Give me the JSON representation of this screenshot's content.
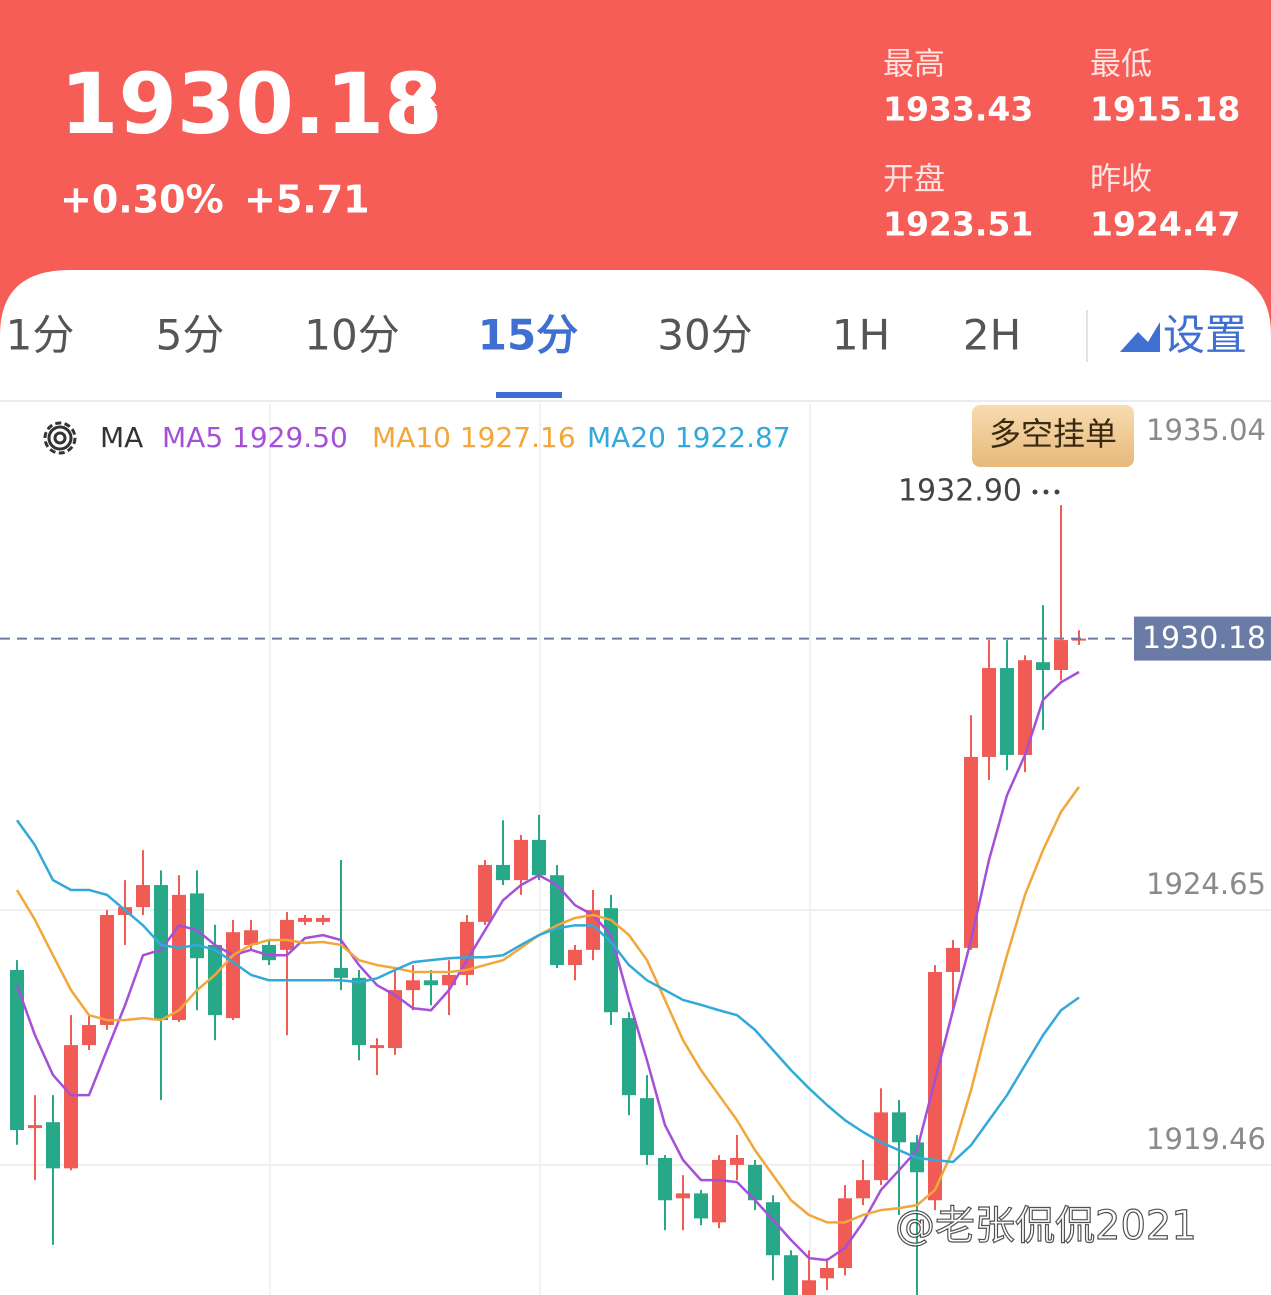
{
  "header": {
    "price": "1930.18",
    "change_percent": "+0.30%",
    "change": "+5.71",
    "stats": [
      {
        "label": "最高",
        "value": "1933.43"
      },
      {
        "label": "最低",
        "value": "1915.18"
      },
      {
        "label": "开盘",
        "value": "1923.51"
      },
      {
        "label": "昨收",
        "value": "1924.47"
      }
    ]
  },
  "tabs": {
    "items": [
      "1分",
      "5分",
      "10分",
      "15分",
      "30分",
      "1H",
      "2H"
    ],
    "active": 3,
    "settings": "设置"
  },
  "button": "多空挂单",
  "watermark": "@老张侃侃2021",
  "chart_data": {
    "type": "candlestick",
    "indicator": "MA",
    "up_color": "#f05b55",
    "down_color": "#26a889",
    "ylim": [
      1916.81,
      1935.04
    ],
    "yticks": [
      1935.04,
      1924.65,
      1919.46
    ],
    "last_price": 1930.18,
    "high_marker": {
      "value": 1932.9,
      "label": "1932.90"
    },
    "candles": {
      "open": [
        1923.43,
        1920.21,
        1920.33,
        1919.39,
        1921.9,
        1922.31,
        1924.55,
        1924.71,
        1925.16,
        1922.41,
        1924.99,
        1923.94,
        1922.45,
        1923.94,
        1923.94,
        1923.84,
        1924.41,
        1924.41,
        1923.47,
        1923.27,
        1921.84,
        1921.84,
        1923.02,
        1923.22,
        1923.12,
        1923.33,
        1924.41,
        1925.57,
        1925.26,
        1926.08,
        1925.36,
        1923.53,
        1923.84,
        1924.69,
        1922.45,
        1920.82,
        1919.6,
        1918.78,
        1918.88,
        1918.29,
        1919.46,
        1919.46,
        1918.7,
        1917.62,
        1916.81,
        1917.15,
        1917.36,
        1918.78,
        1919.15,
        1920.53,
        1919.92,
        1918.74,
        1923.39,
        1923.88,
        1927.77,
        1929.58,
        1927.81,
        1929.7,
        1929.54,
        1930.15
      ],
      "close": [
        1920.17,
        1920.27,
        1919.39,
        1921.9,
        1922.31,
        1924.55,
        1924.71,
        1925.16,
        1922.41,
        1924.96,
        1923.67,
        1922.51,
        1924.2,
        1924.24,
        1923.63,
        1924.45,
        1924.49,
        1924.49,
        1923.27,
        1921.9,
        1921.9,
        1923.02,
        1923.22,
        1923.12,
        1923.33,
        1924.41,
        1925.57,
        1925.26,
        1926.08,
        1925.36,
        1923.53,
        1923.84,
        1924.65,
        1922.57,
        1920.88,
        1919.66,
        1918.74,
        1918.88,
        1918.37,
        1919.56,
        1919.6,
        1918.74,
        1917.62,
        1916.81,
        1917.11,
        1917.36,
        1918.78,
        1919.15,
        1920.53,
        1919.92,
        1919.31,
        1923.39,
        1923.88,
        1927.77,
        1929.58,
        1927.81,
        1929.74,
        1929.54,
        1930.15,
        1930.18
      ],
      "high": [
        1923.63,
        1920.88,
        1920.88,
        1922.51,
        1922.51,
        1924.65,
        1925.26,
        1925.87,
        1925.46,
        1925.36,
        1925.46,
        1924.35,
        1924.45,
        1924.45,
        1924.04,
        1924.61,
        1924.55,
        1924.55,
        1925.67,
        1923.43,
        1922.04,
        1923.43,
        1923.53,
        1923.43,
        1923.63,
        1924.55,
        1925.67,
        1926.48,
        1926.18,
        1926.59,
        1925.57,
        1923.94,
        1925.06,
        1924.96,
        1922.57,
        1921.29,
        1919.66,
        1919.25,
        1918.95,
        1919.66,
        1920.07,
        1919.56,
        1918.84,
        1917.72,
        1917.72,
        1917.56,
        1919.05,
        1919.56,
        1921.02,
        1920.78,
        1920.07,
        1923.53,
        1924.04,
        1928.62,
        1930.15,
        1930.15,
        1929.84,
        1930.86,
        1932.9,
        1930.35
      ],
      "low": [
        1919.87,
        1919.15,
        1917.83,
        1919.35,
        1921.8,
        1922.21,
        1923.94,
        1924.55,
        1920.78,
        1922.37,
        1922.61,
        1922.0,
        1922.41,
        1923.84,
        1923.53,
        1922.1,
        1924.35,
        1924.35,
        1923.02,
        1921.59,
        1921.29,
        1921.7,
        1922.61,
        1922.71,
        1922.51,
        1923.12,
        1924.35,
        1925.16,
        1924.96,
        1925.26,
        1923.47,
        1923.22,
        1923.63,
        1922.31,
        1920.47,
        1919.46,
        1918.13,
        1918.13,
        1918.23,
        1918.17,
        1919.15,
        1918.54,
        1917.11,
        1916.81,
        1916.81,
        1916.91,
        1917.21,
        1918.64,
        1919.05,
        1918.44,
        1916.81,
        1918.54,
        1922.61,
        1923.84,
        1927.3,
        1927.5,
        1927.46,
        1928.32,
        1929.33,
        1930.05
      ]
    },
    "series": [
      {
        "name": "MA5",
        "color": "#a450d8",
        "legend_value": "1929.50",
        "values": [
          1923.12,
          1922.1,
          1921.29,
          1920.88,
          1920.88,
          1921.8,
          1922.71,
          1923.73,
          1923.84,
          1924.34,
          1924.24,
          1923.94,
          1923.73,
          1923.84,
          1923.73,
          1923.73,
          1924.08,
          1924.14,
          1924.04,
          1923.53,
          1923.12,
          1922.92,
          1922.65,
          1922.61,
          1923.02,
          1923.63,
          1924.24,
          1924.85,
          1925.16,
          1925.36,
          1925.16,
          1924.75,
          1924.55,
          1924.14,
          1922.82,
          1921.59,
          1920.27,
          1919.56,
          1919.15,
          1919.15,
          1919.11,
          1918.74,
          1918.34,
          1917.93,
          1917.56,
          1917.52,
          1917.77,
          1918.29,
          1918.95,
          1919.35,
          1919.76,
          1921.19,
          1922.61,
          1924.04,
          1925.67,
          1926.99,
          1927.81,
          1928.93,
          1929.29,
          1929.5
        ]
      },
      {
        "name": "MA10",
        "color": "#f2a73a",
        "legend_value": "1927.16",
        "values": [
          1925.06,
          1924.45,
          1923.73,
          1923.02,
          1922.51,
          1922.41,
          1922.41,
          1922.45,
          1922.41,
          1922.61,
          1923.02,
          1923.33,
          1923.73,
          1923.94,
          1924.04,
          1924.04,
          1923.98,
          1924.0,
          1923.94,
          1923.63,
          1923.53,
          1923.47,
          1923.39,
          1923.39,
          1923.39,
          1923.43,
          1923.53,
          1923.63,
          1923.88,
          1924.14,
          1924.34,
          1924.49,
          1924.55,
          1924.45,
          1924.14,
          1923.63,
          1922.82,
          1922.0,
          1921.39,
          1920.88,
          1920.37,
          1919.76,
          1919.25,
          1918.74,
          1918.44,
          1918.29,
          1918.29,
          1918.44,
          1918.54,
          1918.58,
          1918.64,
          1918.95,
          1919.76,
          1920.98,
          1922.41,
          1923.73,
          1924.96,
          1925.87,
          1926.65,
          1927.16
        ]
      },
      {
        "name": "MA20",
        "color": "#33a9d9",
        "legend_value": "1922.87",
        "values": [
          1926.48,
          1925.97,
          1925.26,
          1925.06,
          1925.06,
          1924.96,
          1924.65,
          1924.34,
          1923.94,
          1923.88,
          1923.94,
          1923.84,
          1923.59,
          1923.33,
          1923.22,
          1923.22,
          1923.22,
          1923.22,
          1923.22,
          1923.18,
          1923.26,
          1923.43,
          1923.59,
          1923.63,
          1923.67,
          1923.69,
          1923.69,
          1923.73,
          1923.94,
          1924.14,
          1924.28,
          1924.34,
          1924.34,
          1924.0,
          1923.53,
          1923.22,
          1923.02,
          1922.82,
          1922.72,
          1922.61,
          1922.51,
          1922.21,
          1921.8,
          1921.39,
          1921.02,
          1920.68,
          1920.37,
          1920.13,
          1919.92,
          1919.76,
          1919.6,
          1919.56,
          1919.52,
          1919.86,
          1920.37,
          1920.88,
          1921.49,
          1922.1,
          1922.61,
          1922.87
        ]
      }
    ]
  }
}
